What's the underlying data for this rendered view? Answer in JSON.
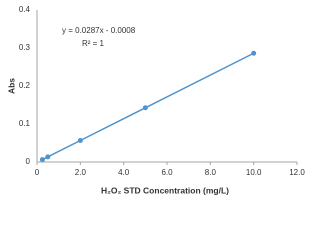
{
  "chart_data": {
    "type": "scatter",
    "x_label": "H₂O₂ STD Concentration (mg/L)",
    "y_label": "Abs",
    "annotations": [
      "y = 0.0287x - 0.0008",
      "R² = 1"
    ],
    "series": [
      {
        "color": "#4f93cf",
        "x": [
          0.25,
          0.5,
          2,
          5,
          10
        ],
        "values": [
          0.0064,
          0.0136,
          0.0566,
          0.1427,
          0.2862
        ]
      }
    ],
    "connect_points": true,
    "xlim": [
      0,
      12
    ],
    "xticks": [
      0,
      {
        "value": 2,
        "label": "2.0"
      },
      {
        "value": 4,
        "label": "4.0"
      },
      {
        "value": 6,
        "label": "6.0"
      },
      {
        "value": 8,
        "label": "8.0"
      },
      {
        "value": 10,
        "label": "10.0"
      },
      {
        "value": 12,
        "label": "12.0"
      }
    ],
    "ylim": [
      0,
      0.4
    ],
    "yticks": [
      0,
      0.1,
      0.2,
      0.3,
      0.4
    ],
    "grid": false
  }
}
